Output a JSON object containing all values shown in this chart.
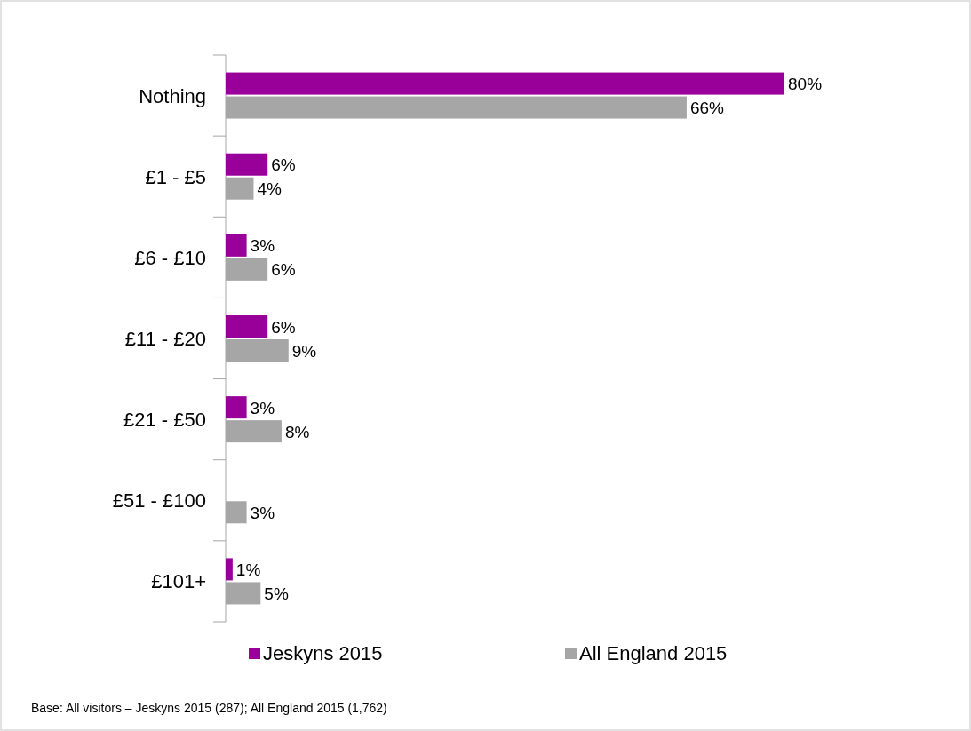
{
  "chart_data": {
    "type": "bar",
    "orientation": "horizontal",
    "categories": [
      "Nothing",
      "£1 - £5",
      "£6 - £10",
      "£11 - £20",
      "£21 - £50",
      "£51 - £100",
      "£101+"
    ],
    "series": [
      {
        "name": "Jeskyns 2015",
        "color": "#990099",
        "values": [
          80,
          6,
          3,
          6,
          3,
          null,
          1
        ],
        "value_labels": [
          "80%",
          "6%",
          "3%",
          "6%",
          "3%",
          null,
          "1%"
        ]
      },
      {
        "name": "All England 2015",
        "color": "#a6a6a6",
        "values": [
          66,
          4,
          6,
          9,
          8,
          3,
          5
        ],
        "value_labels": [
          "66%",
          "4%",
          "6%",
          "9%",
          "8%",
          "3%",
          "5%"
        ]
      }
    ],
    "legend": "bottom",
    "annotations": [
      "Base: All visitors – Jeskyns 2015 (287); All England 2015 (1,762)"
    ]
  }
}
